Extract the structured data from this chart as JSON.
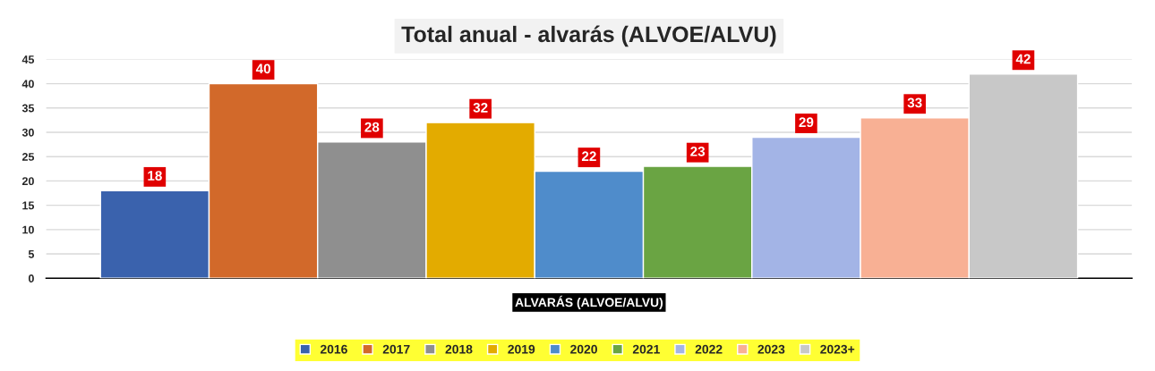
{
  "chart_data": {
    "type": "bar",
    "title": "Total anual - alvarás (ALVOE/ALVU)",
    "categories": [
      "ALVARÁS (ALVOE/ALVU)"
    ],
    "series": [
      {
        "name": "2016",
        "color": "#3a62ad",
        "values": [
          18
        ]
      },
      {
        "name": "2017",
        "color": "#d2692a",
        "values": [
          40
        ]
      },
      {
        "name": "2018",
        "color": "#8f8f8f",
        "values": [
          28
        ]
      },
      {
        "name": "2019",
        "color": "#e3ab00",
        "values": [
          32
        ]
      },
      {
        "name": "2020",
        "color": "#4f8ccb",
        "values": [
          22
        ]
      },
      {
        "name": "2021",
        "color": "#6aa443",
        "values": [
          23
        ]
      },
      {
        "name": "2022",
        "color": "#a3b4e6",
        "values": [
          29
        ]
      },
      {
        "name": "2023",
        "color": "#f8b094",
        "values": [
          33
        ]
      },
      {
        "name": "2023+",
        "color": "#c8c8c8",
        "values": [
          42
        ]
      }
    ],
    "ylim": [
      0,
      45
    ],
    "yticks": [
      0,
      5,
      10,
      15,
      20,
      25,
      30,
      35,
      40,
      45
    ],
    "grid": "y",
    "legend": "bottom",
    "data_labels": true
  }
}
